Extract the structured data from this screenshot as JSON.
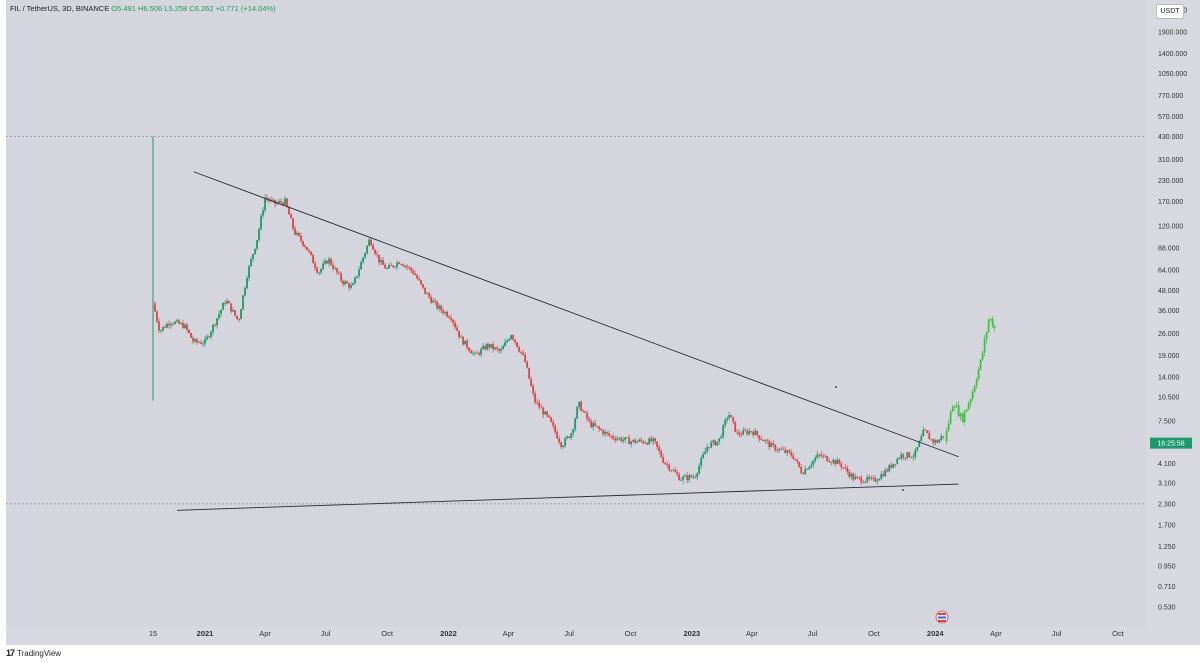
{
  "legend": {
    "symbol": "FIL / TetherUS, 3D, BINANCE",
    "open": "O5.491",
    "high": "H6.506",
    "low": "L5.258",
    "close": "C6.262",
    "change": "+0.771 (+14.04%)"
  },
  "currency_button": "USDT",
  "countdown": "16:25:58",
  "footer": {
    "brand": "TradingView"
  },
  "colors": {
    "up": "#1c9a6d",
    "down": "#d84848",
    "projection": "#3cc43c",
    "countdown_bg": "#1c9a6d",
    "background": "#d4d5dd"
  },
  "chart_data": {
    "type": "candlestick",
    "scale": "log",
    "title": "FIL / TetherUS, 3D, BINANCE",
    "y_ticks": [
      "2600.000",
      "1900.000",
      "1400.000",
      "1050.000",
      "770.000",
      "570.000",
      "430.000",
      "310.000",
      "230.000",
      "170.000",
      "120.000",
      "88.000",
      "64.000",
      "48.000",
      "36.000",
      "26.000",
      "19.000",
      "14.000",
      "10.500",
      "7.500",
      "5.500",
      "4.100",
      "3.100",
      "2.300",
      "1.700",
      "1.250",
      "0.950",
      "0.710",
      "0.530"
    ],
    "x_ticks": [
      "15",
      "2021",
      "Apr",
      "Jul",
      "Oct",
      "2022",
      "Apr",
      "Jul",
      "Oct",
      "2023",
      "Apr",
      "Jul",
      "Oct",
      "2024",
      "Apr",
      "Jul",
      "Oct"
    ],
    "price_path": [
      [
        "2020-10-15",
        40
      ],
      [
        "2020-10-25",
        27
      ],
      [
        "2020-11-10",
        31
      ],
      [
        "2020-12-01",
        29
      ],
      [
        "2020-12-15",
        23
      ],
      [
        "2021-01-01",
        23
      ],
      [
        "2021-01-15",
        30
      ],
      [
        "2021-02-01",
        42
      ],
      [
        "2021-02-20",
        31
      ],
      [
        "2021-03-05",
        60
      ],
      [
        "2021-03-20",
        100
      ],
      [
        "2021-04-01",
        180
      ],
      [
        "2021-04-15",
        165
      ],
      [
        "2021-05-01",
        170
      ],
      [
        "2021-05-15",
        110
      ],
      [
        "2021-06-01",
        90
      ],
      [
        "2021-06-20",
        62
      ],
      [
        "2021-07-05",
        75
      ],
      [
        "2021-07-25",
        55
      ],
      [
        "2021-08-10",
        50
      ],
      [
        "2021-08-25",
        75
      ],
      [
        "2021-09-05",
        100
      ],
      [
        "2021-09-20",
        72
      ],
      [
        "2021-10-01",
        65
      ],
      [
        "2021-10-20",
        73
      ],
      [
        "2021-11-10",
        62
      ],
      [
        "2021-11-25",
        48
      ],
      [
        "2021-12-15",
        38
      ],
      [
        "2022-01-05",
        33
      ],
      [
        "2022-01-20",
        24
      ],
      [
        "2022-02-10",
        19
      ],
      [
        "2022-03-01",
        22
      ],
      [
        "2022-03-20",
        20
      ],
      [
        "2022-04-05",
        26
      ],
      [
        "2022-04-25",
        18
      ],
      [
        "2022-05-10",
        10
      ],
      [
        "2022-06-01",
        7.6
      ],
      [
        "2022-06-20",
        5.3
      ],
      [
        "2022-07-05",
        6.4
      ],
      [
        "2022-07-15",
        9.6
      ],
      [
        "2022-08-01",
        7.2
      ],
      [
        "2022-09-01",
        6
      ],
      [
        "2022-10-01",
        5.6
      ],
      [
        "2022-11-05",
        5.6
      ],
      [
        "2022-11-20",
        4.2
      ],
      [
        "2022-12-15",
        3.3
      ],
      [
        "2023-01-05",
        3.4
      ],
      [
        "2023-01-25",
        5.3
      ],
      [
        "2023-02-10",
        5.6
      ],
      [
        "2023-02-25",
        8.4
      ],
      [
        "2023-03-10",
        6.2
      ],
      [
        "2023-04-01",
        6.5
      ],
      [
        "2023-05-01",
        5.2
      ],
      [
        "2023-06-01",
        4.6
      ],
      [
        "2023-06-15",
        3.6
      ],
      [
        "2023-07-10",
        4.6
      ],
      [
        "2023-08-10",
        4.1
      ],
      [
        "2023-09-01",
        3.3
      ],
      [
        "2023-10-01",
        3.2
      ],
      [
        "2023-10-20",
        3.7
      ],
      [
        "2023-11-10",
        4.6
      ],
      [
        "2023-12-01",
        4.6
      ],
      [
        "2023-12-15",
        6.5
      ],
      [
        "2023-12-28",
        5.6
      ],
      [
        "2024-01-05",
        5.6
      ],
      [
        "2024-01-15",
        6.3
      ]
    ],
    "projection_path": [
      [
        "2024-01-15",
        5.6
      ],
      [
        "2024-01-28",
        10
      ],
      [
        "2024-02-10",
        7.6
      ],
      [
        "2024-02-25",
        11
      ],
      [
        "2024-03-10",
        18
      ],
      [
        "2024-03-22",
        33
      ],
      [
        "2024-03-30",
        28
      ]
    ],
    "trendlines": [
      {
        "name": "descending-resistance",
        "from": [
          "2020-12-15",
          260
        ],
        "to": [
          "2024-02-05",
          4.5
        ]
      },
      {
        "name": "ascending-support",
        "from": [
          "2020-11-20",
          2.1
        ],
        "to": [
          "2024-02-05",
          3.05
        ]
      }
    ],
    "horizontal_levels": [
      430,
      2.3
    ]
  }
}
